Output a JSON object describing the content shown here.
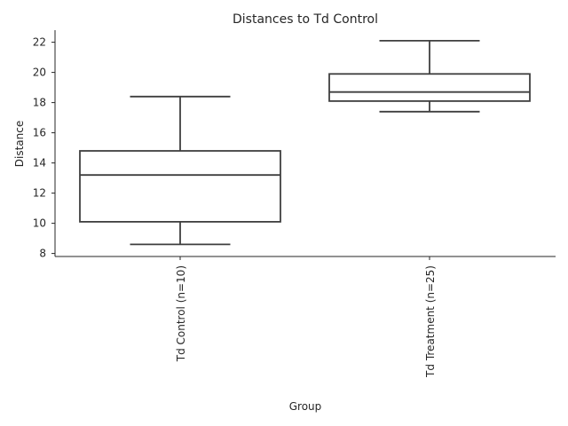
{
  "chart_data": {
    "type": "box",
    "title": "Distances to Td Control",
    "xlabel": "Group",
    "ylabel": "Distance",
    "ylim": [
      7.8,
      22.8
    ],
    "yticks": [
      8,
      10,
      12,
      14,
      16,
      18,
      20,
      22
    ],
    "grid": false,
    "legend": false,
    "categories": [
      "Td Control (n=10)",
      "Td Treatment (n=25)"
    ],
    "boxes": [
      {
        "label": "Td Control (n=10)",
        "whisker_low": 8.6,
        "q1": 10.1,
        "median": 13.2,
        "q3": 14.8,
        "whisker_high": 18.4
      },
      {
        "label": "Td Treatment (n=25)",
        "whisker_low": 17.4,
        "q1": 18.1,
        "median": 18.7,
        "q3": 19.9,
        "whisker_high": 22.1
      }
    ]
  }
}
